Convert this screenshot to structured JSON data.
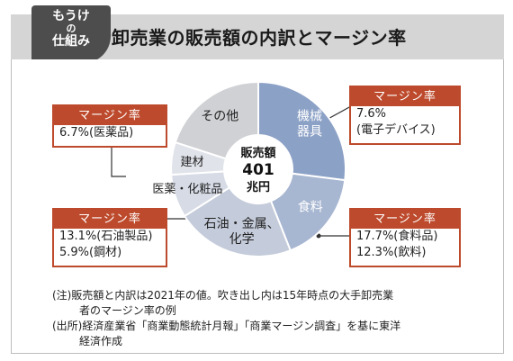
{
  "header": {
    "tag_line1": "もうけ",
    "tag_line2": "の",
    "tag_line3": "仕組み",
    "title": "卸売業の販売額の内訳とマージン率"
  },
  "chart_data": {
    "type": "pie",
    "donut": true,
    "title": "卸売業の販売額の内訳とマージン率",
    "center_label": [
      "販売額",
      "401",
      "兆円"
    ],
    "categories": [
      "機械器具",
      "食料",
      "石油・金属、化学",
      "医薬・化粧品",
      "建材",
      "その他"
    ],
    "values": [
      27,
      17,
      22,
      8,
      6,
      20
    ],
    "colors": [
      "#8ca1c6",
      "#a7b6d1",
      "#c4cbda",
      "#d6dbe5",
      "#e0e3ea",
      "#cfd1d4"
    ],
    "labels": [
      "機械\n器具",
      "食料",
      "石油・金属、\n化学",
      "医薬・化粧品",
      "建材",
      "その他"
    ]
  },
  "callouts": [
    {
      "header": "マージン率",
      "lines": [
        "7.6%",
        "(電子デバイス)"
      ]
    },
    {
      "header": "マージン率",
      "lines": [
        "6.7%(医薬品)"
      ]
    },
    {
      "header": "マージン率",
      "lines": [
        "13.1%(石油製品)",
        "5.9%(鋼材)"
      ]
    },
    {
      "header": "マージン率",
      "lines": [
        "17.7%(食料品)",
        "12.3%(飲料)"
      ]
    }
  ],
  "notes": [
    "(注)販売額と内訳は2021年の値。吹き出し内は15年時点の大手卸売業",
    "者のマージン率の例",
    "(出所)経済産業省「商業動態統計月報」「商業マージン調査」を基に東洋",
    "経済作成"
  ]
}
